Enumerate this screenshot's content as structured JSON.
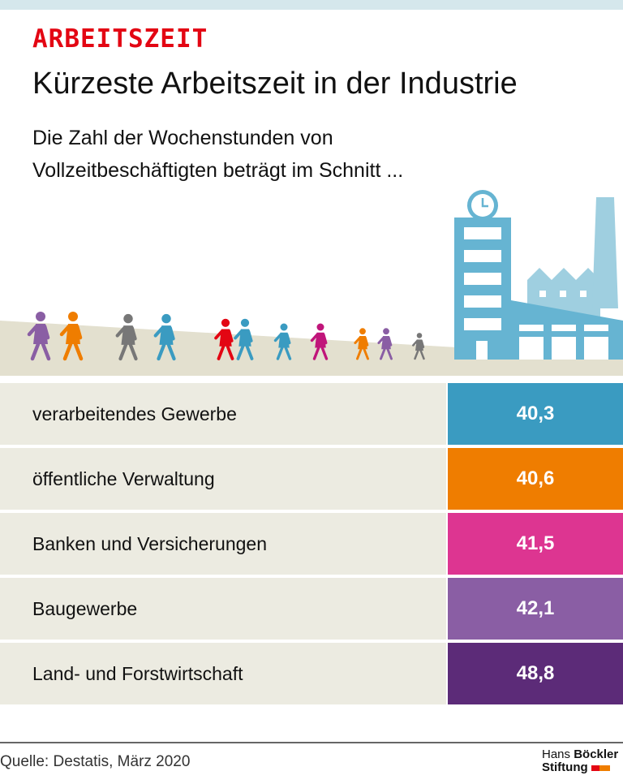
{
  "header": {
    "kicker": "ARBEITSZEIT",
    "title": "Kürzeste Arbeitszeit in der Industrie",
    "subtitle": "Die Zahl der Wochenstunden von Vollzeitbeschäftigten beträgt im Schnitt ..."
  },
  "chart_data": {
    "type": "table",
    "categories": [
      "verarbeitendes Gewerbe",
      "öffentliche Verwaltung",
      "Banken und Versicherungen",
      "Baugewerbe",
      "Land- und Forstwirtschaft"
    ],
    "values": [
      "40,3",
      "40,6",
      "41,5",
      "42,1",
      "48,8"
    ],
    "colors": [
      "#3a9bc1",
      "#ef7d00",
      "#dd3591",
      "#8a5ea4",
      "#5c2b78"
    ]
  },
  "footer": {
    "source": "Quelle: Destatis, März 2020",
    "logo_line1_light": "Hans",
    "logo_line1_bold": "Böckler",
    "logo_line2": "Stiftung"
  },
  "colors": {
    "accent": "#e30613",
    "ground": "#e3e0cf",
    "building": "#66b4d2",
    "row_bg": "#ecebe1"
  }
}
